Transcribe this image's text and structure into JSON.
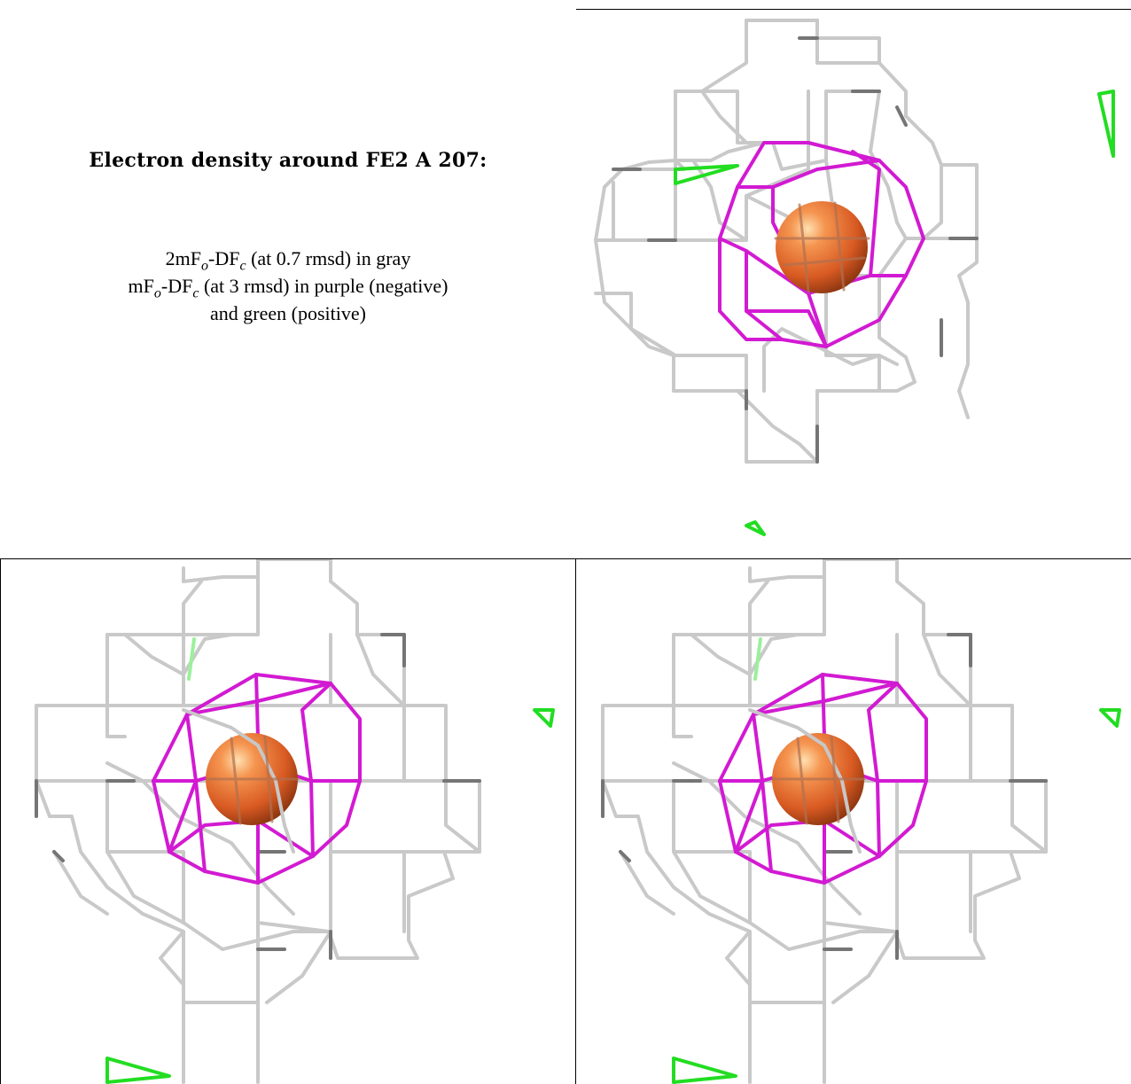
{
  "caption": {
    "title": "Electron density around FE2 A 207:",
    "line1": {
      "prefix": "2mF",
      "sub1": "o",
      "mid": "-DF",
      "sub2": "c",
      "suffix": " (at 0.7 rmsd) in gray"
    },
    "line2": {
      "prefix": "mF",
      "sub1": "o",
      "mid": "-DF",
      "sub2": "c",
      "suffix": " (at 3 rmsd) in purple (negative)"
    },
    "line3": "and green (positive)"
  },
  "colors": {
    "map_2fofc": "#c8c8c8",
    "map_2fofc_dark": "#6e6e6e",
    "map_fofc_negative": "#d21ad2",
    "map_fofc_positive": "#1ee01e",
    "atom_fe": "#e0642a",
    "grid": "#000000"
  },
  "panels": [
    {
      "name": "view-top-right",
      "atom": "FE2 A 207"
    },
    {
      "name": "view-bottom-left",
      "atom": "FE2 A 207"
    },
    {
      "name": "view-bottom-right",
      "atom": "FE2 A 207"
    }
  ]
}
